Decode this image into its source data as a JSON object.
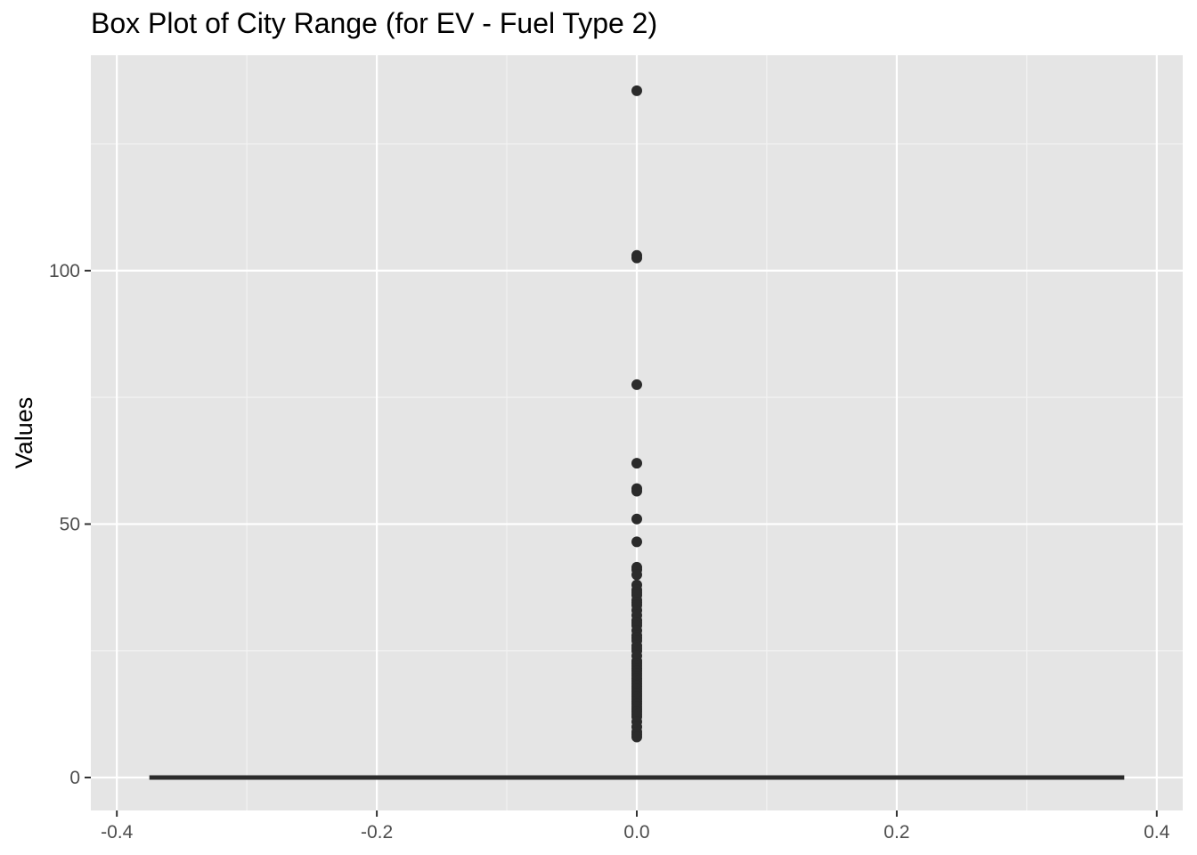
{
  "chart_data": {
    "type": "box",
    "title": "Box Plot of City Range (for EV - Fuel Type 2)",
    "xlabel": "",
    "ylabel": "Values",
    "xlim": [
      -0.42,
      0.42
    ],
    "ylim": [
      -6.5,
      142.5
    ],
    "x_ticks": [
      -0.4,
      -0.2,
      0.0,
      0.2,
      0.4
    ],
    "x_tick_labels": [
      "-0.4",
      "-0.2",
      "0.0",
      "0.2",
      "0.4"
    ],
    "y_ticks": [
      0,
      50,
      100
    ],
    "y_tick_labels": [
      "0",
      "50",
      "100"
    ],
    "grid": true,
    "box": {
      "x": 0.0,
      "width": 0.75,
      "q1": 0,
      "median": 0,
      "q3": 0,
      "whisker_low": 0,
      "whisker_high": 0
    },
    "outliers": [
      135.5,
      103,
      102.5,
      77.5,
      62,
      57,
      56.5,
      51,
      46.5,
      41.5,
      41,
      40,
      38,
      37,
      36.5,
      36,
      35,
      34.5,
      34,
      33,
      32,
      31,
      30.5,
      30,
      29,
      28,
      27.5,
      27,
      26,
      25.5,
      25,
      24,
      23,
      22.5,
      22,
      21.5,
      21,
      20.5,
      20,
      19.5,
      19,
      18.5,
      18,
      17.5,
      17,
      16.5,
      16,
      15.5,
      15,
      14.5,
      14,
      13.5,
      13,
      12.5,
      12,
      11,
      10,
      9,
      8.5,
      8
    ]
  },
  "colors": {
    "panel": "#e5e5e5",
    "grid_major": "#ffffff",
    "grid_minor": "#f2f2f2",
    "marks": "#2b2b2b",
    "tick": "#333333"
  }
}
